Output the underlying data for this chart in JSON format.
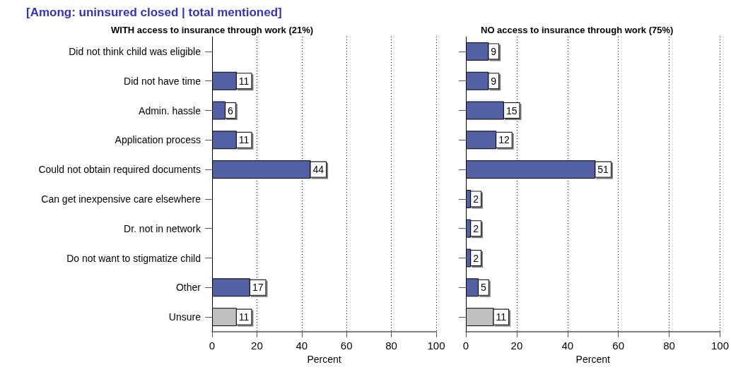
{
  "chart_data": [
    {
      "type": "bar",
      "orientation": "horizontal",
      "title": "[Among: uninsured closed | total mentioned]",
      "subtitle": "WITH access to insurance through work (21%)",
      "xlabel": "Percent",
      "categories": [
        "Did not think child was eligible",
        "Did not have time",
        "Admin. hassle",
        "Application process",
        "Could not obtain required documents",
        "Can get inexpensive care elsewhere",
        "Dr. not in network",
        "Do not want to stigmatize child",
        "Other",
        "Unsure"
      ],
      "values": [
        null,
        11,
        6,
        11,
        44,
        null,
        null,
        null,
        17,
        11
      ],
      "colors": [
        "#5460a4",
        "#5460a4",
        "#5460a4",
        "#5460a4",
        "#5460a4",
        "#5460a4",
        "#5460a4",
        "#5460a4",
        "#5460a4",
        "#c0c0c0"
      ],
      "xlim": [
        0,
        100
      ],
      "xticks": [
        0,
        20,
        40,
        60,
        80,
        100
      ],
      "grid": "x",
      "data_labels": true
    },
    {
      "type": "bar",
      "orientation": "horizontal",
      "title": "NO access to insurance through work (75%)",
      "xlabel": "Percent",
      "categories": [
        null,
        null,
        null,
        null,
        null,
        null,
        null,
        null,
        null,
        null
      ],
      "values": [
        9,
        9,
        15,
        12,
        51,
        2,
        2,
        2,
        5,
        11
      ],
      "colors": [
        "#5460a4",
        "#5460a4",
        "#5460a4",
        "#5460a4",
        "#5460a4",
        "#5460a4",
        "#5460a4",
        "#5460a4",
        "#5460a4",
        "#c0c0c0"
      ],
      "xlim": [
        0,
        100
      ],
      "xticks": [
        0,
        20,
        40,
        60,
        80,
        100
      ],
      "grid": "x",
      "data_labels": true,
      "tick_labels": "x"
    }
  ]
}
